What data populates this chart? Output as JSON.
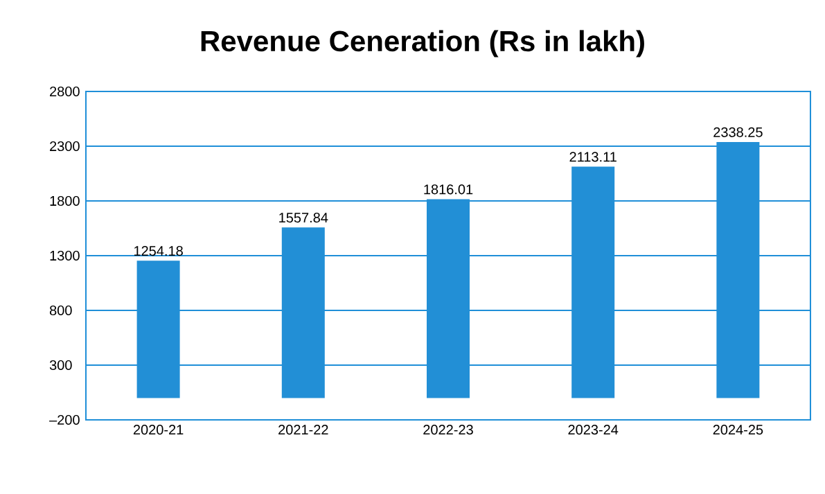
{
  "chart_data": {
    "type": "bar",
    "title": "Revenue Ceneration (Rs in lakh)",
    "categories": [
      "2020-21",
      "2021-22",
      "2022-23",
      "2023-24",
      "2024-25"
    ],
    "values": [
      1254.18,
      1557.84,
      1816.01,
      2113.11,
      2338.25
    ],
    "color": "#228fd6",
    "ylim": [
      -200,
      2800
    ],
    "yticks": [
      {
        "value": -200,
        "label": "–200"
      },
      300,
      800,
      1300,
      1800,
      2300,
      2800
    ],
    "grid": "y",
    "data_labels": true
  }
}
